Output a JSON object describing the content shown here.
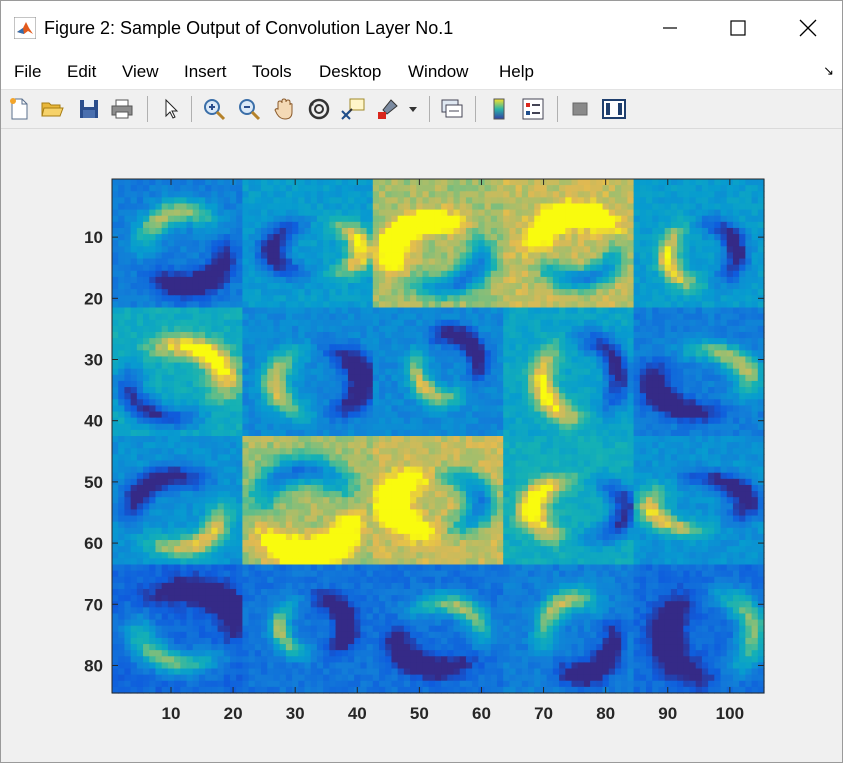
{
  "window": {
    "title": "Figure 2: Sample Output of Convolution Layer No.1",
    "controls": [
      "minimize",
      "maximize",
      "close"
    ]
  },
  "menu": {
    "items": [
      "File",
      "Edit",
      "View",
      "Insert",
      "Tools",
      "Desktop",
      "Window",
      "Help"
    ]
  },
  "toolbar": {
    "icons": [
      "new-figure-icon",
      "open-file-icon",
      "save-icon",
      "print-icon",
      "pointer-icon",
      "zoom-in-icon",
      "zoom-out-icon",
      "pan-hand-icon",
      "rotate-3d-icon",
      "data-cursor-icon",
      "brush-icon",
      "brush-dropdown-icon",
      "link-plot-icon",
      "insert-colorbar-icon",
      "insert-legend-icon",
      "hide-plot-tools-icon",
      "show-plot-tools-icon"
    ]
  },
  "chart_data": {
    "type": "heatmap",
    "colormap": "parula",
    "grid_layout": {
      "rows": 4,
      "cols": 5,
      "tile_size": 21
    },
    "xlim": [
      0.5,
      105.5
    ],
    "ylim": [
      0.5,
      84.5
    ],
    "x_ticks": [
      10,
      20,
      30,
      40,
      50,
      60,
      70,
      80,
      90,
      100
    ],
    "y_ticks": [
      10,
      20,
      30,
      40,
      50,
      60,
      70,
      80
    ],
    "x_tick_labels": [
      "10",
      "20",
      "30",
      "40",
      "50",
      "60",
      "70",
      "80",
      "90",
      "100"
    ],
    "y_tick_labels": [
      "10",
      "20",
      "30",
      "40",
      "50",
      "60",
      "70",
      "80"
    ],
    "y_direction": "reverse",
    "grid": false,
    "tiles": [
      {
        "row": 0,
        "col": 0,
        "bg": 0.3
      },
      {
        "row": 0,
        "col": 1,
        "bg": 0.45
      },
      {
        "row": 0,
        "col": 2,
        "bg": 0.8
      },
      {
        "row": 0,
        "col": 3,
        "bg": 0.85
      },
      {
        "row": 0,
        "col": 4,
        "bg": 0.45
      },
      {
        "row": 1,
        "col": 0,
        "bg": 0.55
      },
      {
        "row": 1,
        "col": 1,
        "bg": 0.35
      },
      {
        "row": 1,
        "col": 2,
        "bg": 0.35
      },
      {
        "row": 1,
        "col": 3,
        "bg": 0.5
      },
      {
        "row": 1,
        "col": 4,
        "bg": 0.3
      },
      {
        "row": 2,
        "col": 0,
        "bg": 0.4
      },
      {
        "row": 2,
        "col": 1,
        "bg": 0.8
      },
      {
        "row": 2,
        "col": 2,
        "bg": 0.85
      },
      {
        "row": 2,
        "col": 3,
        "bg": 0.55
      },
      {
        "row": 2,
        "col": 4,
        "bg": 0.4
      },
      {
        "row": 3,
        "col": 0,
        "bg": 0.2
      },
      {
        "row": 3,
        "col": 1,
        "bg": 0.25
      },
      {
        "row": 3,
        "col": 2,
        "bg": 0.25
      },
      {
        "row": 3,
        "col": 3,
        "bg": 0.3
      },
      {
        "row": 3,
        "col": 4,
        "bg": 0.22
      }
    ]
  }
}
